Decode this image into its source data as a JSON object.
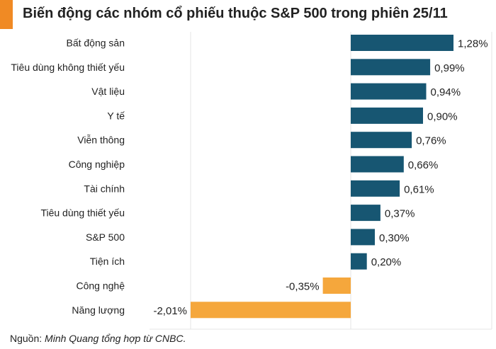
{
  "colors": {
    "positive": "#175672",
    "negative": "#f5a73c",
    "accent": "#f08a24",
    "grid": "#e6e6e6"
  },
  "title": "Biến động các nhóm cổ phiếu thuộc S&P 500 trong phiên 25/11",
  "source": {
    "prefix": "Nguồn: ",
    "text": "Minh Quang tổng hợp từ CNBC."
  },
  "chart_data": {
    "type": "bar",
    "orientation": "horizontal",
    "title": "Biến động các nhóm cổ phiếu thuộc S&P 500 trong phiên 25/11",
    "unit": "%",
    "categories": [
      "Bất động sản",
      "Tiêu dùng không thiết yếu",
      "Vật liệu",
      "Y tế",
      "Viễn thông",
      "Công nghiệp",
      "Tài chính",
      "Tiêu dùng thiết yếu",
      "S&P 500",
      "Tiện ích",
      "Công nghệ",
      "Năng lượng"
    ],
    "values": [
      1.28,
      0.99,
      0.94,
      0.9,
      0.76,
      0.66,
      0.61,
      0.37,
      0.3,
      0.2,
      -0.35,
      -2.01
    ],
    "value_labels": [
      "1,28%",
      "0,99%",
      "0,94%",
      "0,90%",
      "0,76%",
      "0,66%",
      "0,61%",
      "0,37%",
      "0,30%",
      "0,20%",
      "-0,35%",
      "-2,01%"
    ],
    "xlim": [
      -2.01,
      1.28
    ],
    "grid": true
  }
}
